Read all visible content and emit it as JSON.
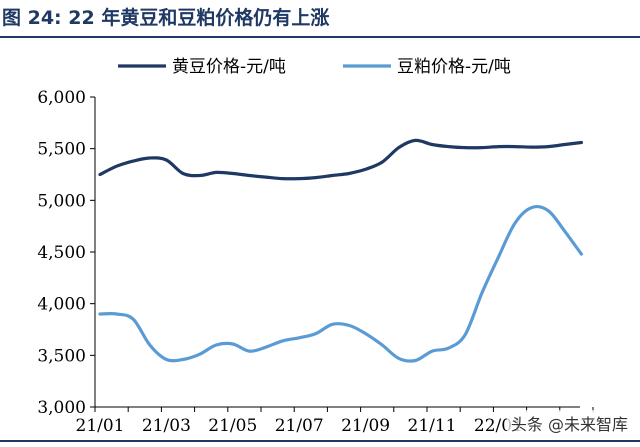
{
  "figure_title": "图 24:  22 年黄豆和豆粕价格仍有上涨",
  "watermark": "头条 @未来智库",
  "colors": {
    "title": "#1f3864",
    "series1": "#1f3864",
    "series2": "#5b9bd5",
    "axis": "#000000"
  },
  "chart_data": {
    "type": "line",
    "title": "",
    "xlabel": "",
    "ylabel": "",
    "ylim": [
      3000,
      6000
    ],
    "yticks": [
      3000,
      3500,
      4000,
      4500,
      5000,
      5500,
      6000
    ],
    "ytick_labels": [
      "3,000",
      "3,500",
      "4,000",
      "4,500",
      "5,000",
      "5,500",
      "6,000"
    ],
    "xlim": [
      0,
      15
    ],
    "xtick_positions": [
      0,
      2,
      4,
      6,
      8,
      10,
      12
    ],
    "xtick_labels": [
      "21/01",
      "21/03",
      "21/05",
      "21/07",
      "21/09",
      "21/11",
      "22/01"
    ],
    "legend_position": "top",
    "grid": false,
    "series": [
      {
        "name": "黄豆价格-元/吨",
        "color": "#1f3864",
        "x": [
          0,
          0.5,
          1,
          1.5,
          2,
          2.5,
          3,
          3.5,
          4,
          4.5,
          5,
          5.5,
          6,
          6.5,
          7,
          7.5,
          8,
          8.5,
          9,
          9.5,
          10,
          10.5,
          11,
          11.5,
          12,
          12.5,
          13,
          13.5,
          14,
          14.5
        ],
        "values": [
          5250,
          5330,
          5380,
          5410,
          5390,
          5260,
          5240,
          5270,
          5260,
          5240,
          5225,
          5210,
          5210,
          5220,
          5240,
          5260,
          5300,
          5370,
          5510,
          5580,
          5540,
          5520,
          5510,
          5510,
          5520,
          5520,
          5515,
          5520,
          5540,
          5560
        ]
      },
      {
        "name": "豆粕价格-元/吨",
        "color": "#5b9bd5",
        "x": [
          0,
          0.5,
          1,
          1.5,
          2,
          2.5,
          3,
          3.5,
          4,
          4.5,
          5,
          5.5,
          6,
          6.5,
          7,
          7.5,
          8,
          8.5,
          9,
          9.5,
          10,
          10.5,
          11,
          11.5,
          12,
          12.5,
          13,
          13.5,
          14,
          14.5
        ],
        "values": [
          3900,
          3900,
          3850,
          3600,
          3460,
          3460,
          3510,
          3600,
          3610,
          3540,
          3580,
          3640,
          3670,
          3710,
          3800,
          3790,
          3710,
          3600,
          3470,
          3450,
          3540,
          3570,
          3700,
          4100,
          4450,
          4780,
          4930,
          4900,
          4700,
          4480
        ]
      }
    ]
  }
}
